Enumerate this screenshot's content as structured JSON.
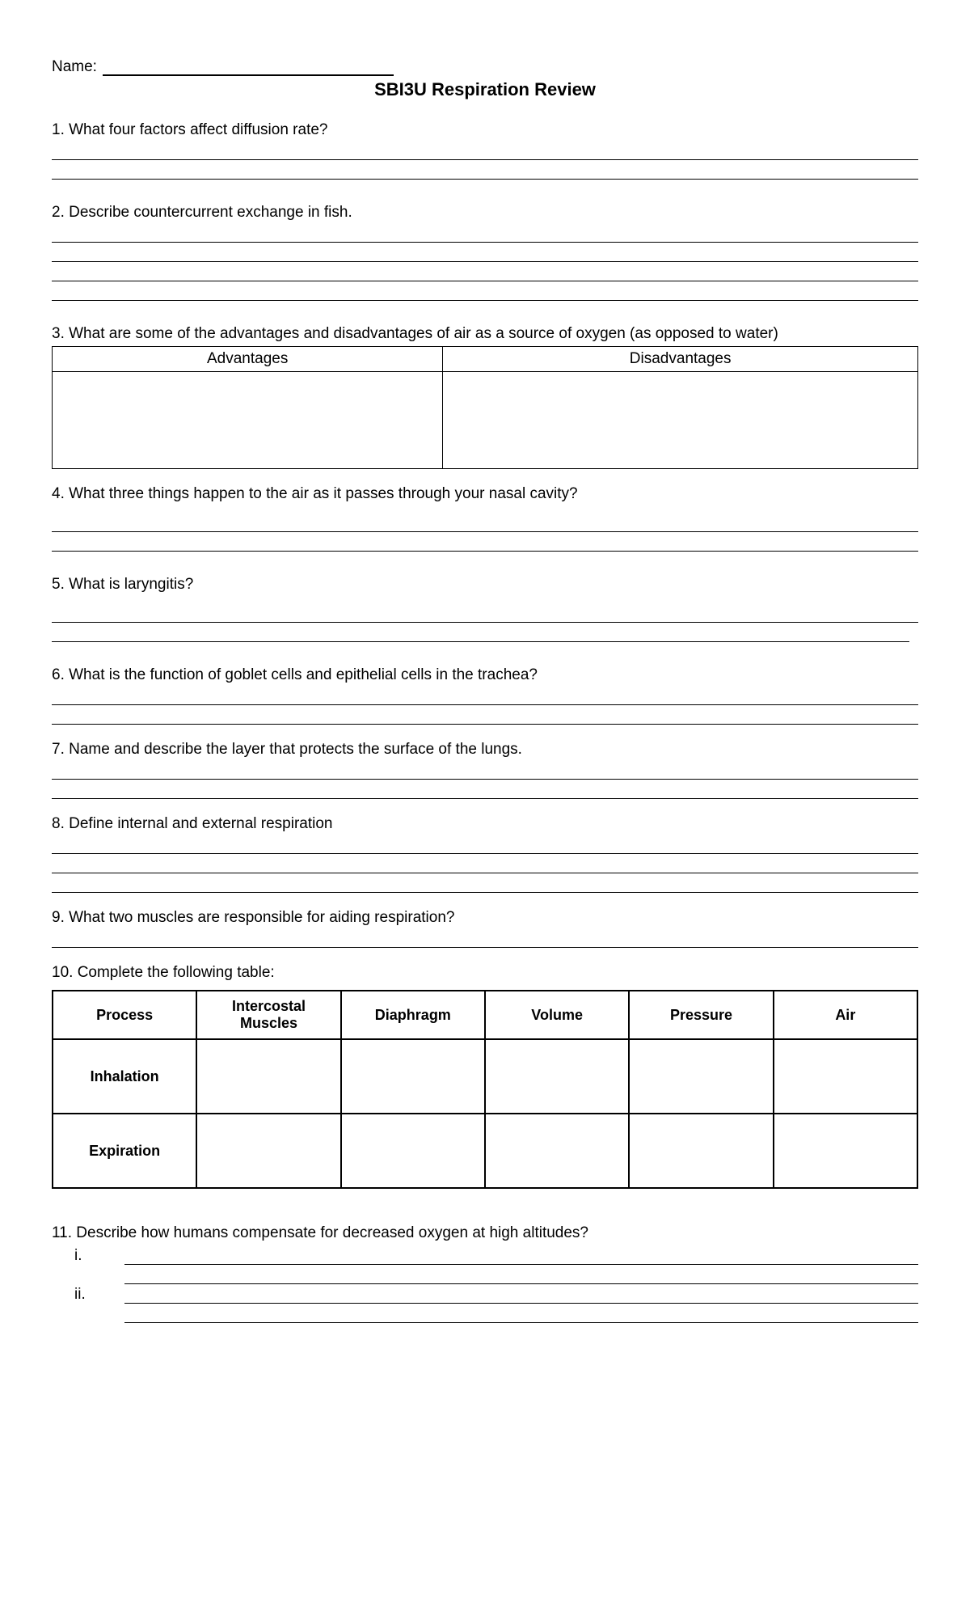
{
  "name": {
    "label": "Name:"
  },
  "title": "SBI3U  Respiration Review",
  "q1": {
    "text": "1.  What four factors affect diffusion rate?"
  },
  "q2": {
    "text": "2.   Describe countercurrent exchange in fish."
  },
  "q3": {
    "text": "3. What are some of the advantages and disadvantages of air as a source of oxygen (as opposed to water)",
    "col1": "Advantages",
    "col2": "Disadvantages"
  },
  "q4": {
    "text": "4.  What three things happen to the air as it passes through your nasal cavity?"
  },
  "q5": {
    "text": "5.   What is laryngitis?"
  },
  "q6": {
    "text": "6.  What is the function of goblet cells and epithelial cells in the trachea?"
  },
  "q7": {
    "text": "7. Name and describe the layer that protects the surface of the lungs."
  },
  "q8": {
    "text": "8. Define internal and external respiration"
  },
  "q9": {
    "text": "9.  What two muscles are responsible for aiding respiration?"
  },
  "q10": {
    "text": "10.  Complete the following table:",
    "headers": [
      "Process",
      "Intercostal Muscles",
      "Diaphragm",
      "Volume",
      "Pressure",
      "Air"
    ],
    "rows": [
      "Inhalation",
      "Expiration"
    ]
  },
  "q11": {
    "text": "11.  Describe how humans compensate for decreased oxygen at high altitudes?",
    "markers": [
      "i.",
      "ii."
    ]
  }
}
